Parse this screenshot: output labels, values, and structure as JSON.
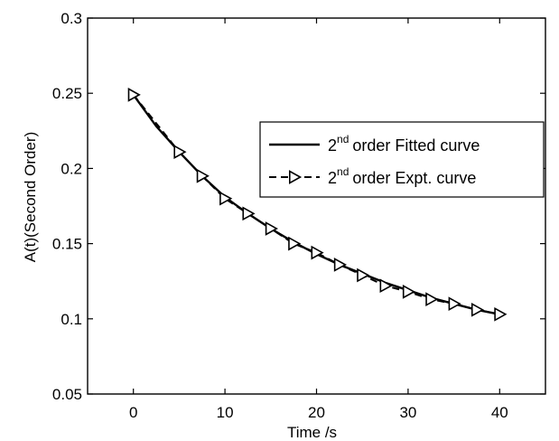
{
  "chart_data": {
    "type": "line",
    "title": "",
    "xlabel": "Time /s",
    "ylabel": "A(t)(Second Order)",
    "xlim": [
      -5,
      45
    ],
    "ylim": [
      0.05,
      0.3
    ],
    "xticks": [
      0,
      10,
      20,
      30,
      40
    ],
    "yticks": [
      0.05,
      0.1,
      0.15,
      0.2,
      0.25,
      0.3
    ],
    "xtick_labels": [
      "0",
      "10",
      "20",
      "30",
      "40"
    ],
    "ytick_labels": [
      "0.05",
      "0.1",
      "0.15",
      "0.2",
      "0.25",
      "0.3"
    ],
    "grid": false,
    "legend_position": "upper-right",
    "series": [
      {
        "name": "order Fitted curve",
        "name_prefix": "2",
        "name_sup": "nd",
        "style": "solid",
        "color": "#000000",
        "x": [
          0,
          2.5,
          5,
          7.5,
          10,
          12.5,
          15,
          17.5,
          20,
          22.5,
          25,
          27.5,
          30,
          32.5,
          35,
          37.5,
          40
        ],
        "y": [
          0.249,
          0.228,
          0.211,
          0.195,
          0.181,
          0.17,
          0.16,
          0.151,
          0.143,
          0.136,
          0.13,
          0.124,
          0.119,
          0.114,
          0.11,
          0.106,
          0.103
        ]
      },
      {
        "name": "order Expt. curve",
        "name_prefix": "2",
        "name_sup": "nd",
        "style": "dashed",
        "marker": "triangle-right",
        "color": "#000000",
        "x": [
          0,
          5,
          7.5,
          10,
          12.5,
          15,
          17.5,
          20,
          22.5,
          25,
          27.5,
          30,
          32.5,
          35,
          37.5,
          40
        ],
        "y": [
          0.249,
          0.211,
          0.195,
          0.18,
          0.17,
          0.16,
          0.15,
          0.144,
          0.136,
          0.129,
          0.122,
          0.118,
          0.113,
          0.11,
          0.106,
          0.103
        ]
      }
    ]
  }
}
